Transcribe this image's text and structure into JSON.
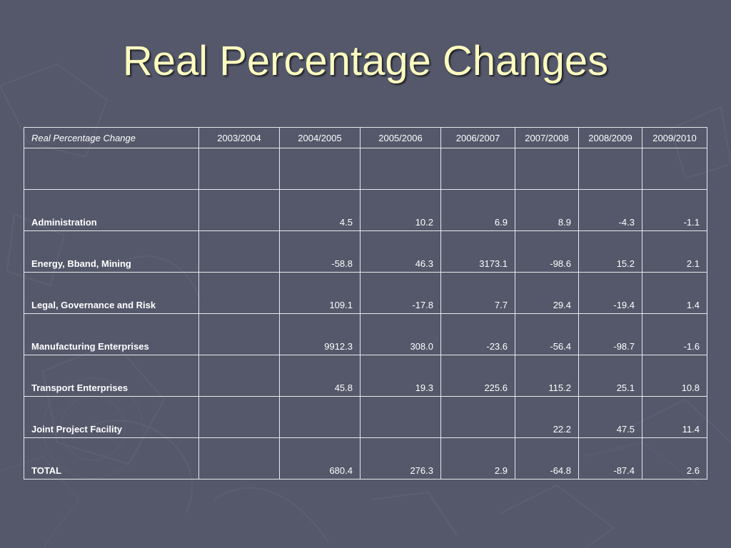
{
  "slide": {
    "title": "Real Percentage Changes"
  },
  "table": {
    "corner_label": "Real Percentage Change",
    "columns": [
      "2003/2004",
      "2004/2005",
      "2005/2006",
      "2006/2007",
      "2007/2008",
      "2008/2009",
      "2009/2010"
    ],
    "rows": [
      {
        "label": "",
        "values": [
          "",
          "",
          "",
          "",
          "",
          "",
          ""
        ]
      },
      {
        "label": "Administration",
        "values": [
          "",
          "4.5",
          "10.2",
          "6.9",
          "8.9",
          "-4.3",
          "-1.1"
        ]
      },
      {
        "label": "Energy, Bband, Mining",
        "values": [
          "",
          "-58.8",
          "46.3",
          "3173.1",
          "-98.6",
          "15.2",
          "2.1"
        ]
      },
      {
        "label": "Legal, Governance and Risk",
        "values": [
          "",
          "109.1",
          "-17.8",
          "7.7",
          "29.4",
          "-19.4",
          "1.4"
        ]
      },
      {
        "label": "Manufacturing Enterprises",
        "values": [
          "",
          "9912.3",
          "308.0",
          "-23.6",
          "-56.4",
          "-98.7",
          "-1.6"
        ]
      },
      {
        "label": "Transport Enterprises",
        "values": [
          "",
          "45.8",
          "19.3",
          "225.6",
          "115.2",
          "25.1",
          "10.8"
        ]
      },
      {
        "label": "Joint Project Facility",
        "values": [
          "",
          "",
          "",
          "",
          "22.2",
          "47.5",
          "11.4"
        ]
      },
      {
        "label": "TOTAL",
        "values": [
          "",
          "680.4",
          "276.3",
          "2.9",
          "-64.8",
          "-87.4",
          "2.6"
        ]
      }
    ]
  }
}
